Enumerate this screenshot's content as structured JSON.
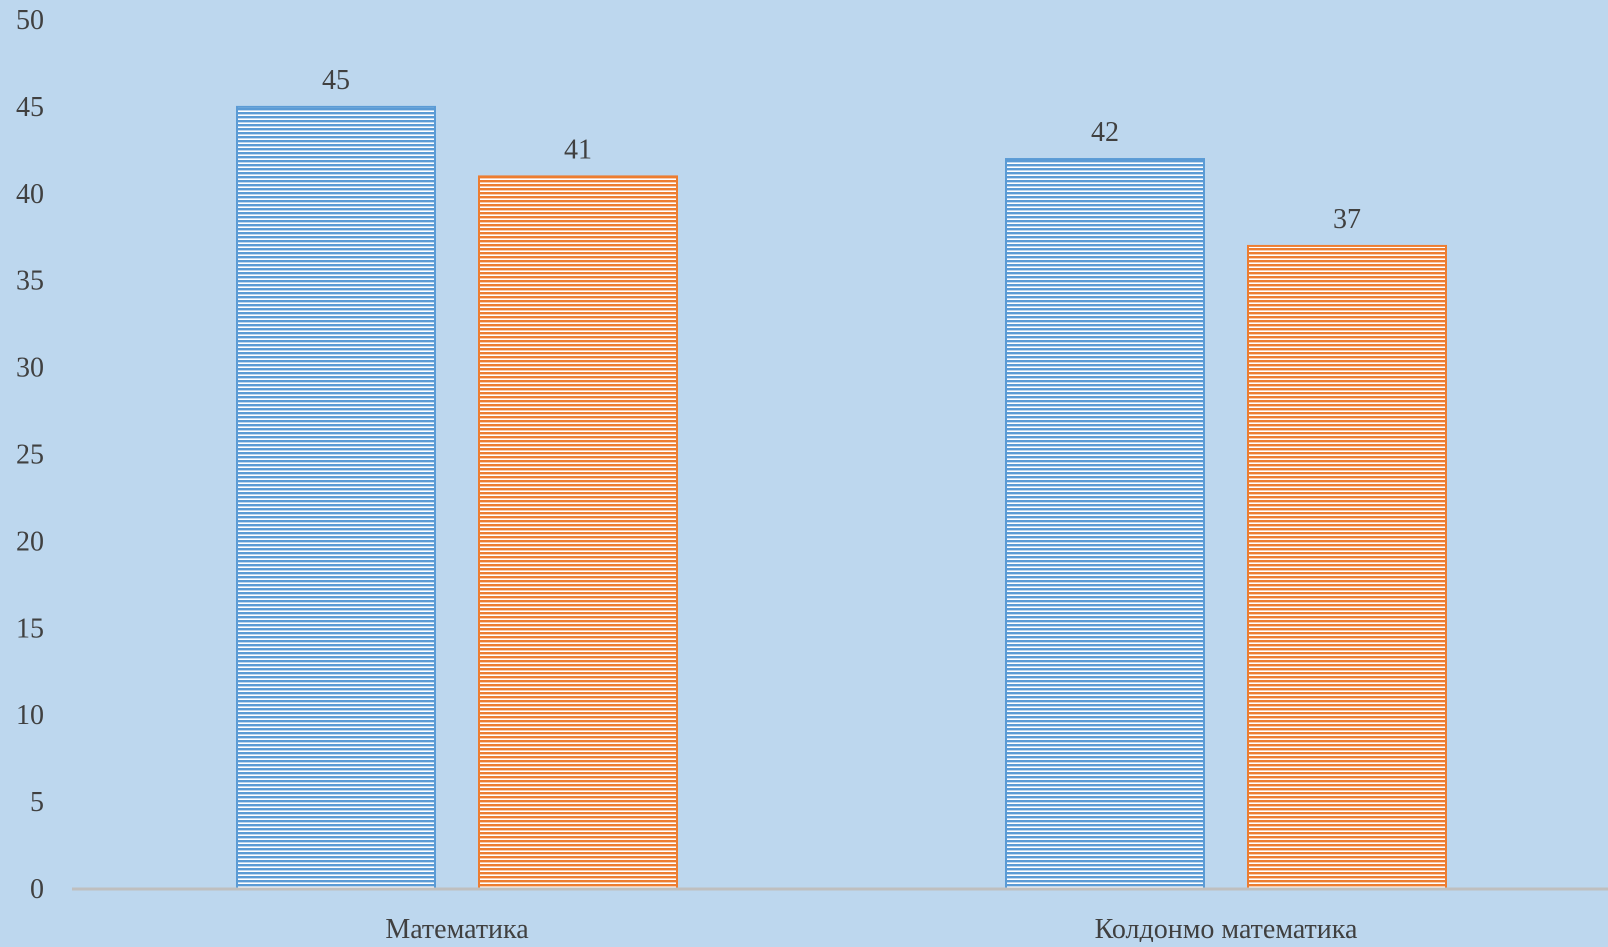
{
  "chart_data": {
    "type": "bar",
    "categories": [
      "Математика",
      "Колдонмо математика"
    ],
    "series": [
      {
        "values": [
          45,
          42
        ],
        "color": "#5b9bd5"
      },
      {
        "values": [
          41,
          37
        ],
        "color": "#ed7d31"
      }
    ],
    "ylim": [
      0,
      50
    ],
    "y_ticks": [
      0,
      5,
      10,
      15,
      20,
      25,
      30,
      35,
      40,
      45,
      50
    ],
    "grid": false,
    "legend": "none",
    "data_labels": true,
    "bar_pattern": "horizontal-stripes",
    "background": "#bdd7ee",
    "axis_color": "#bfbfbf"
  }
}
